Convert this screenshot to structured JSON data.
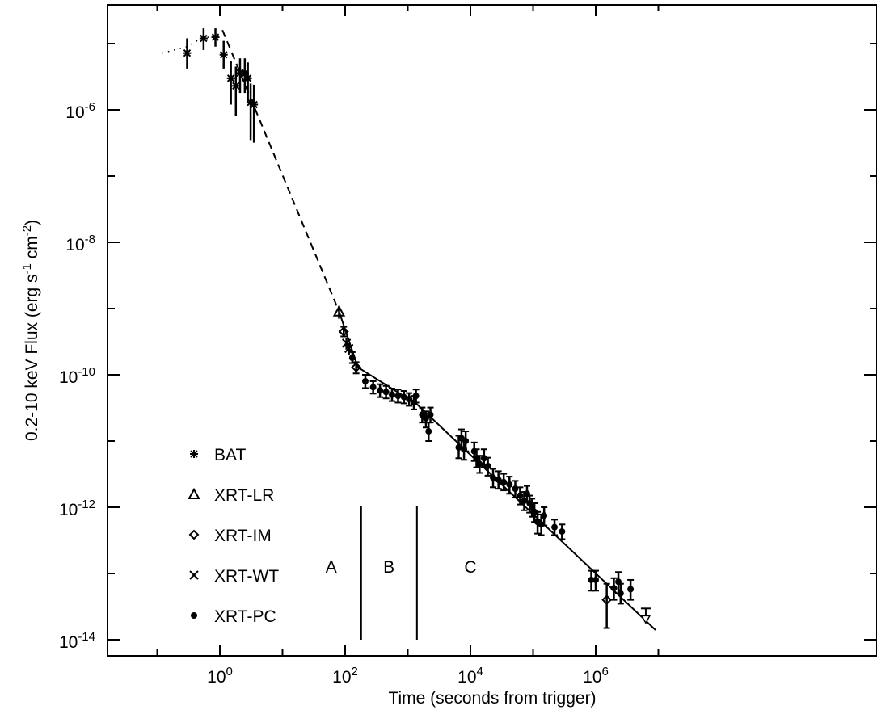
{
  "chart_data": {
    "type": "scatter",
    "x_scale": "log",
    "y_scale": "log",
    "xlabel": "Time (seconds from trigger)",
    "ylabel_parts": [
      "0.2-10 keV Flux (erg s",
      "-1",
      " cm",
      "-2",
      ")"
    ],
    "xlim": [
      0.07,
      10000000
    ],
    "ylim": [
      6e-15,
      3e-05
    ],
    "x_ticks": [
      {
        "base": "10",
        "exp": "0",
        "value": 1
      },
      {
        "base": "10",
        "exp": "2",
        "value": 100
      },
      {
        "base": "10",
        "exp": "4",
        "value": 10000
      },
      {
        "base": "10",
        "exp": "6",
        "value": 1000000
      }
    ],
    "y_ticks": [
      {
        "base": "10",
        "exp": "-6",
        "value": 1e-06
      },
      {
        "base": "10",
        "exp": "-8",
        "value": 1e-08
      },
      {
        "base": "10",
        "exp": "-10",
        "value": 1e-10
      },
      {
        "base": "10",
        "exp": "-12",
        "value": 1e-12
      },
      {
        "base": "10",
        "exp": "-14",
        "value": 1e-14
      }
    ],
    "legend": [
      "BAT",
      "XRT-LR",
      "XRT-IM",
      "XRT-WT",
      "XRT-PC"
    ],
    "legend_position": "bottom-left",
    "regions": [
      {
        "label": "A",
        "x": 60
      },
      {
        "label": "B",
        "x": 500
      },
      {
        "label": "C",
        "x": 10000
      }
    ],
    "region_boundaries": [
      180,
      1400
    ],
    "fit_dashed": [
      [
        1.1,
        1.6e-05
      ],
      [
        80,
        9e-10
      ]
    ],
    "fit_solid": [
      [
        80,
        9e-10
      ],
      [
        160,
        1.3e-10
      ],
      [
        1400,
        3.6e-11
      ],
      [
        9000000,
        1.4e-14
      ]
    ],
    "bat_prefix_dotted": [
      [
        0.12,
        7.2e-06
      ],
      [
        0.3,
        9e-06
      ],
      [
        0.5,
        1.2e-05
      ],
      [
        0.85,
        1.3e-05
      ]
    ],
    "series": [
      {
        "name": "BAT",
        "marker": "asterisk",
        "points": [
          [
            0.3,
            7.2e-06,
            4.2e-06,
            1.2e-05
          ],
          [
            0.55,
            1.2e-05,
            8e-06,
            1.7e-05
          ],
          [
            0.85,
            1.25e-05,
            9e-06,
            1.7e-05
          ],
          [
            1.15,
            6.8e-06,
            4.2e-06,
            1.1e-05
          ],
          [
            1.5,
            3e-06,
            1.2e-06,
            5.5e-06
          ],
          [
            1.8,
            2.3e-06,
            8e-07,
            4.5e-06
          ],
          [
            2.1,
            3.6e-06,
            1.8e-06,
            6e-06
          ],
          [
            2.5,
            3.6e-06,
            1.8e-06,
            6e-06
          ],
          [
            2.8,
            3e-06,
            1.3e-06,
            5.2e-06
          ],
          [
            3.1,
            1.3e-06,
            3.5e-07,
            2.5e-06
          ],
          [
            3.5,
            1.2e-06,
            3.2e-07,
            2.4e-06
          ]
        ]
      },
      {
        "name": "XRT-LR",
        "marker": "triangle",
        "points": [
          [
            80,
            9e-10,
            7e-10,
            1.1e-09
          ]
        ]
      },
      {
        "name": "XRT-IM",
        "marker": "diamond",
        "points": [
          [
            95,
            4.5e-10,
            3.8e-10,
            5.3e-10
          ],
          [
            150,
            1.3e-10,
            1.05e-10,
            1.55e-10
          ],
          [
            1500000,
            4e-14,
            1.5e-14,
            7e-14
          ]
        ]
      },
      {
        "name": "XRT-WT",
        "marker": "x",
        "points": [
          [
            105,
            3e-10,
            2.4e-10,
            3.6e-10
          ],
          [
            115,
            2.5e-10,
            2e-10,
            3e-10
          ]
        ]
      },
      {
        "name": "XRT-PC",
        "marker": "dot",
        "points": [
          [
            130,
            1.8e-10,
            1.5e-10,
            2.2e-10
          ],
          [
            210,
            8e-11,
            6.3e-11,
            1e-10
          ],
          [
            280,
            6.5e-11,
            5.2e-11,
            8e-11
          ],
          [
            360,
            5.8e-11,
            4.6e-11,
            7.2e-11
          ],
          [
            450,
            5.5e-11,
            4.4e-11,
            6.8e-11
          ],
          [
            560,
            5e-11,
            4e-11,
            6.2e-11
          ],
          [
            700,
            4.8e-11,
            3.8e-11,
            6e-11
          ],
          [
            870,
            4.6e-11,
            3.7e-11,
            5.7e-11
          ],
          [
            1050,
            4.3e-11,
            3.4e-11,
            5.3e-11
          ],
          [
            1250,
            3.8e-11,
            3e-11,
            4.8e-11
          ],
          [
            1350,
            4.8e-11,
            3.8e-11,
            6e-11
          ],
          [
            1700,
            2.5e-11,
            1.9e-11,
            3.2e-11
          ],
          [
            1950,
            2.2e-11,
            1.6e-11,
            2.8e-11
          ],
          [
            2150,
            1.4e-11,
            1e-11,
            1.9e-11
          ],
          [
            2300,
            2.5e-11,
            1.9e-11,
            3.2e-11
          ],
          [
            6500,
            8e-12,
            5.5e-12,
            1.2e-11
          ],
          [
            7200,
            1.1e-11,
            7.5e-12,
            1.5e-11
          ],
          [
            7900,
            7.5e-12,
            5.2e-12,
            1.05e-11
          ],
          [
            8400,
            1e-11,
            7e-12,
            1.4e-11
          ],
          [
            11500,
            7e-12,
            5e-12,
            9.5e-12
          ],
          [
            12500,
            5.5e-12,
            4e-12,
            7.5e-12
          ],
          [
            14000,
            4.5e-12,
            3.3e-12,
            6e-12
          ],
          [
            16500,
            5.5e-12,
            4e-12,
            7.5e-12
          ],
          [
            19000,
            4.2e-12,
            3e-12,
            5.6e-12
          ],
          [
            23000,
            2.8e-12,
            2e-12,
            3.8e-12
          ],
          [
            28000,
            2.6e-12,
            1.9e-12,
            3.5e-12
          ],
          [
            34000,
            2.4e-12,
            1.8e-12,
            3.2e-12
          ],
          [
            42000,
            2.2e-12,
            1.6e-12,
            2.9e-12
          ],
          [
            52000,
            1.9e-12,
            1.4e-12,
            2.5e-12
          ],
          [
            62000,
            1.5e-12,
            1.1e-12,
            2e-12
          ],
          [
            72000,
            1.25e-12,
            9e-13,
            1.7e-12
          ],
          [
            80000,
            1.6e-12,
            1.2e-12,
            2.1e-12
          ],
          [
            88000,
            1.15e-12,
            8.3e-13,
            1.5e-12
          ],
          [
            96000,
            1e-12,
            7.2e-13,
            1.35e-12
          ],
          [
            105000,
            8.5e-13,
            6e-13,
            1.15e-12
          ],
          [
            118000,
            6e-13,
            4e-13,
            8.5e-13
          ],
          [
            135000,
            5.5e-13,
            3.8e-13,
            7.8e-13
          ],
          [
            150000,
            7.5e-13,
            5.3e-13,
            1e-12
          ],
          [
            220000,
            5e-13,
            3.8e-13,
            6.5e-13
          ],
          [
            290000,
            4.3e-13,
            3.3e-13,
            5.5e-13
          ],
          [
            850000,
            8e-14,
            5.5e-14,
            1.1e-13
          ],
          [
            1000000,
            8e-14,
            5.5e-14,
            1.1e-13
          ],
          [
            1950000,
            6e-14,
            4e-14,
            8.5e-14
          ],
          [
            2300000,
            7.5e-14,
            5e-14,
            1.05e-13
          ],
          [
            2500000,
            5e-14,
            3.5e-14,
            7e-14
          ],
          [
            3600000,
            5.8e-14,
            4e-14,
            8e-14
          ]
        ]
      },
      {
        "name": "upper limit",
        "marker": "arrow-down",
        "points": [
          [
            6300000,
            2e-14,
            1.2e-14,
            2e-14
          ]
        ]
      }
    ]
  }
}
